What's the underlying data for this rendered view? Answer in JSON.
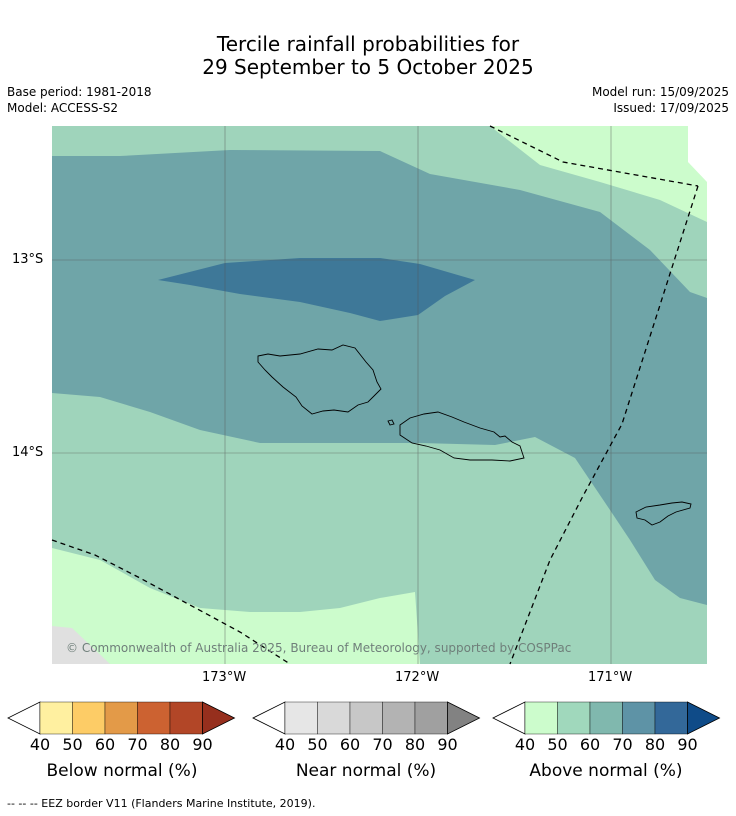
{
  "title": {
    "line1": "Tercile rainfall probabilities for",
    "line2": "29 September to 5 October 2025"
  },
  "meta": {
    "base_period": "Base period: 1981-2018",
    "model": "Model: ACCESS-S2",
    "model_run": "Model run: 15/09/2025",
    "issued": "Issued: 17/09/2025"
  },
  "map": {
    "lat_ticks": [
      "13°S",
      "14°S"
    ],
    "lon_ticks": [
      "173°W",
      "172°W",
      "171°W"
    ],
    "copyright": "© Commonwealth of Australia 2025, Bureau of Meteorology, supported by COSPPac",
    "fill_colors": {
      "above_40_50": "#ccfccc",
      "above_50_60": "#9fd4bb",
      "above_60_70": "#6fa5a8",
      "above_70_80": "#3e7898",
      "no_data": "#e0e0e0"
    }
  },
  "colorbars": [
    {
      "label": "Below normal (%)",
      "ticks": [
        "40",
        "50",
        "60",
        "70",
        "80",
        "90"
      ],
      "colors": [
        "#fff0a0",
        "#fdcc66",
        "#e39a48",
        "#cc6231",
        "#b24627",
        "#962f1d"
      ]
    },
    {
      "label": "Near normal (%)",
      "ticks": [
        "40",
        "50",
        "60",
        "70",
        "80",
        "90"
      ],
      "colors": [
        "#e6e6e6",
        "#d9d9d9",
        "#c7c7c7",
        "#b3b3b3",
        "#a0a0a0",
        "#828282"
      ]
    },
    {
      "label": "Above normal (%)",
      "ticks": [
        "40",
        "50",
        "60",
        "70",
        "80",
        "90"
      ],
      "colors": [
        "#ccfccc",
        "#a0d8bc",
        "#80b8ae",
        "#5e93a6",
        "#336899",
        "#0f4b88"
      ]
    }
  ],
  "footer": {
    "legend_line": "--  --  -- EEZ border V11 (Flanders Marine Institute, 2019)."
  }
}
